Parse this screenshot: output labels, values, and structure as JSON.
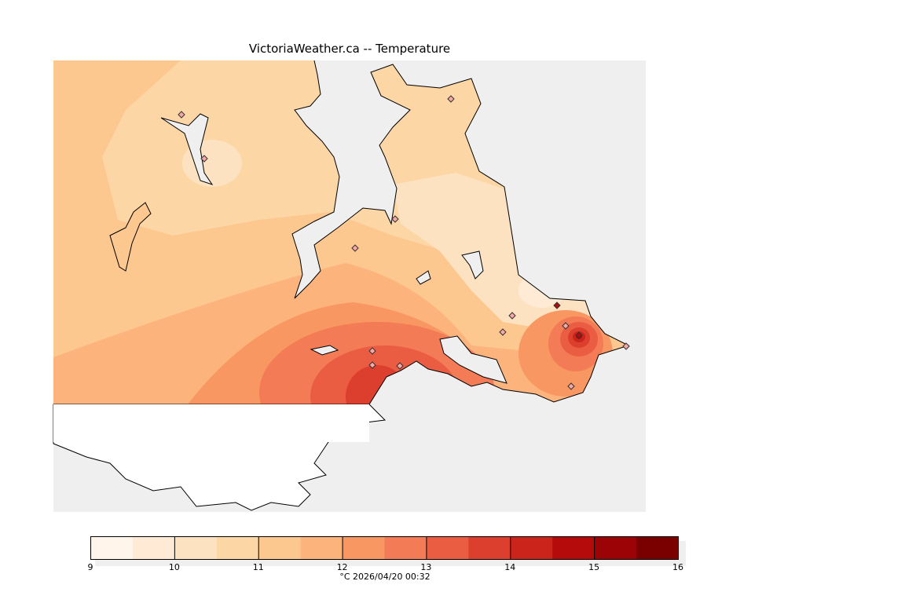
{
  "title": "VictoriaWeather.ca -- Temperature",
  "colorbar": {
    "ticks": [
      "9",
      "10",
      "11",
      "12",
      "13",
      "14",
      "15",
      "16"
    ],
    "colors": [
      "#fff5eb",
      "#feead5",
      "#fde2c1",
      "#fdd6a5",
      "#fdc790",
      "#fcb47c",
      "#f99762",
      "#f37b55",
      "#ea5d43",
      "#dc3f2d",
      "#cb241a",
      "#b50c0b",
      "#9c0307",
      "#7a0000"
    ],
    "range": [
      9,
      16
    ],
    "unit": "°C"
  },
  "caption": "°C  2026/04/20 00:32"
}
